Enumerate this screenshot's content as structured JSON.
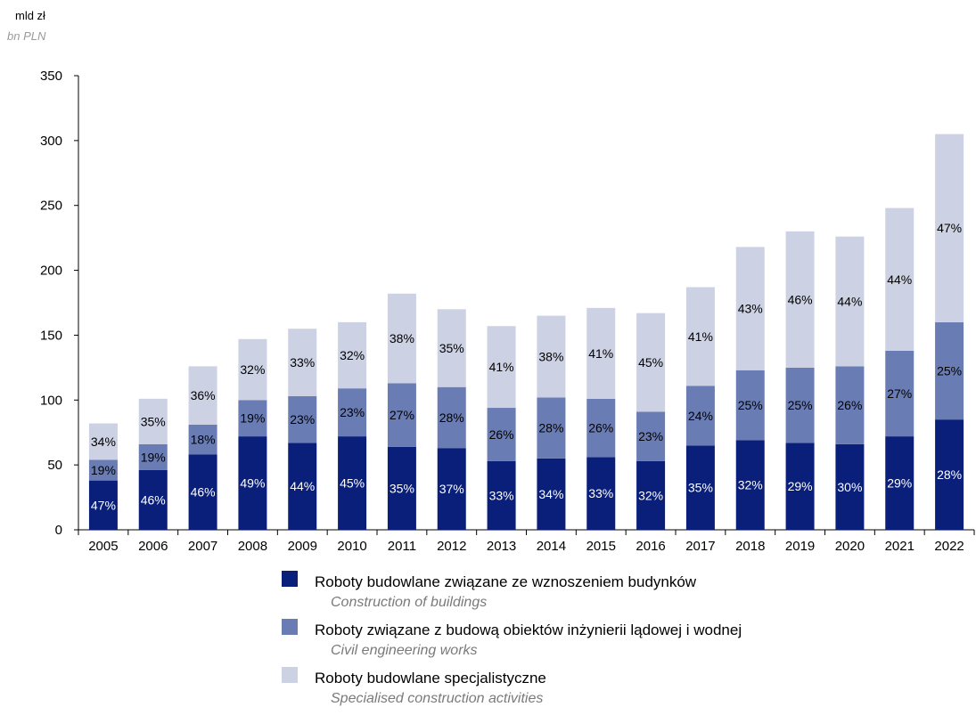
{
  "unit": {
    "pl": "mld zł",
    "en": "bn PLN"
  },
  "chart_data": {
    "type": "bar",
    "stacked": true,
    "categories": [
      "2005",
      "2006",
      "2007",
      "2008",
      "2009",
      "2010",
      "2011",
      "2012",
      "2013",
      "2014",
      "2015",
      "2016",
      "2017",
      "2018",
      "2019",
      "2020",
      "2021",
      "2022"
    ],
    "ylim": [
      0,
      350
    ],
    "yticks": [
      0,
      50,
      100,
      150,
      200,
      250,
      300,
      350
    ],
    "grid": false,
    "legend_position": "bottom",
    "series": [
      {
        "name": "Roboty budowlane związane ze wznoszeniem budynków",
        "name_en": "Construction of buildings",
        "color": "#0a1f7a",
        "label_color": "#ffffff",
        "values": [
          38,
          46,
          58,
          72,
          67,
          72,
          64,
          63,
          53,
          55,
          56,
          53,
          65,
          69,
          67,
          66,
          72,
          85
        ],
        "labels": [
          "47%",
          "46%",
          "46%",
          "49%",
          "44%",
          "45%",
          "35%",
          "37%",
          "33%",
          "34%",
          "33%",
          "32%",
          "35%",
          "32%",
          "29%",
          "30%",
          "29%",
          "28%"
        ]
      },
      {
        "name": "Roboty związane z budową obiektów inżynierii lądowej i wodnej",
        "name_en": "Civil engineering works",
        "color": "#6a7cb4",
        "label_color": "#000000",
        "values": [
          16,
          20,
          23,
          28,
          36,
          37,
          49,
          47,
          41,
          47,
          45,
          38,
          46,
          54,
          58,
          60,
          66,
          75
        ],
        "labels": [
          "19%",
          "19%",
          "18%",
          "19%",
          "23%",
          "23%",
          "27%",
          "28%",
          "26%",
          "28%",
          "26%",
          "23%",
          "24%",
          "25%",
          "25%",
          "26%",
          "27%",
          "25%"
        ]
      },
      {
        "name": "Roboty budowlane specjalistyczne",
        "name_en": "Specialised construction activities",
        "color": "#cdd1e4",
        "label_color": "#000000",
        "values": [
          28,
          35,
          45,
          47,
          52,
          51,
          69,
          60,
          63,
          63,
          70,
          76,
          76,
          95,
          105,
          100,
          110,
          145
        ],
        "labels": [
          "34%",
          "35%",
          "36%",
          "32%",
          "33%",
          "32%",
          "38%",
          "35%",
          "41%",
          "38%",
          "41%",
          "45%",
          "41%",
          "43%",
          "46%",
          "44%",
          "44%",
          "47%"
        ]
      }
    ]
  }
}
